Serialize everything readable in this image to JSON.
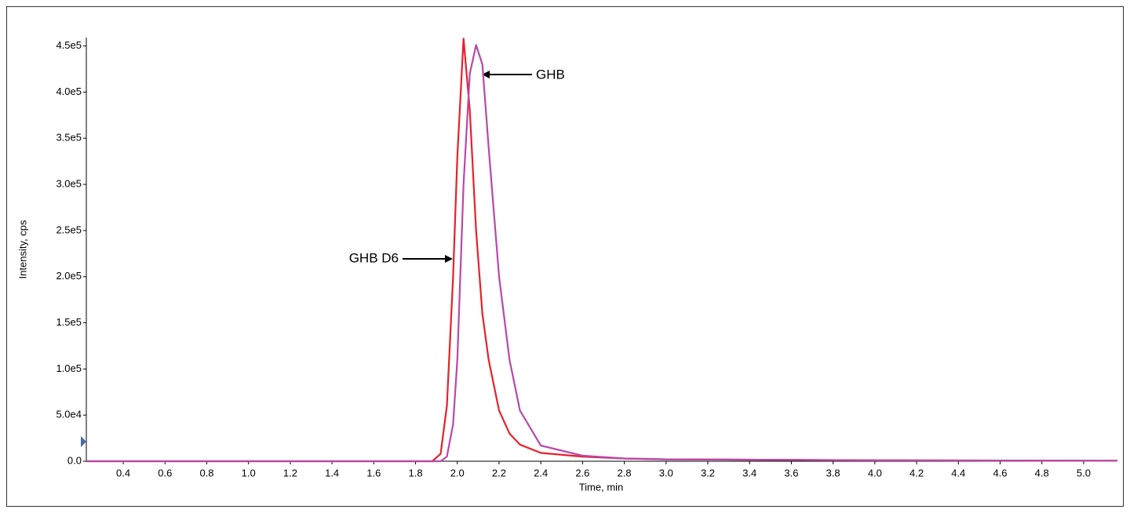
{
  "chart_data": {
    "type": "line",
    "x_label": "Time, min",
    "y_label": "Intensity, cps",
    "x": [
      0.223,
      1.0,
      1.8,
      1.88,
      1.92,
      1.95,
      1.98,
      2.0,
      2.03,
      2.06,
      2.09,
      2.12,
      2.15,
      2.2,
      2.25,
      2.3,
      2.4,
      2.6,
      2.8,
      3.0,
      4.0,
      5.162
    ],
    "series": [
      {
        "name": "GHB D6",
        "color": "#e8202a",
        "values": [
          0,
          0,
          0,
          0,
          8000,
          60000,
          200000,
          330000,
          458000,
          380000,
          250000,
          160000,
          110000,
          55000,
          30000,
          18000,
          9000,
          5000,
          3000,
          2000,
          1000,
          500
        ]
      },
      {
        "name": "GHB",
        "color": "#b848a8",
        "values": [
          0,
          0,
          0,
          0,
          0,
          5000,
          40000,
          110000,
          300000,
          420000,
          451000,
          430000,
          340000,
          200000,
          110000,
          55000,
          17000,
          6000,
          3000,
          2000,
          1000,
          500
        ]
      }
    ],
    "annotations": [
      "GHB",
      "GHB D6"
    ],
    "xlim": [
      0.223,
      5.162
    ],
    "xticks": [
      0.4,
      0.6,
      0.8,
      {
        "value": 1.0,
        "label": "1.0"
      },
      1.2,
      1.4,
      1.6,
      1.8,
      {
        "value": 2.0,
        "label": "2.0"
      },
      2.2,
      2.4,
      2.6,
      2.8,
      {
        "value": 3.0,
        "label": "3.0"
      },
      3.2,
      3.4,
      3.6,
      3.8,
      {
        "value": 4.0,
        "label": "4.0"
      },
      4.2,
      4.4,
      4.6,
      4.8,
      {
        "value": 5.0,
        "label": "5.0"
      }
    ],
    "ylim": [
      0,
      459000
    ],
    "yticks": [
      {
        "value": 0,
        "label": "0.0"
      },
      {
        "value": 50000,
        "label": "5.0e4"
      },
      {
        "value": 100000,
        "label": "1.0e5"
      },
      {
        "value": 150000,
        "label": "1.5e5"
      },
      {
        "value": 200000,
        "label": "2.0e5"
      },
      {
        "value": 250000,
        "label": "2.5e5"
      },
      {
        "value": 300000,
        "label": "3.0e5"
      },
      {
        "value": 350000,
        "label": "3.5e5"
      },
      {
        "value": 400000,
        "label": "4.0e5"
      },
      {
        "value": 450000,
        "label": "4.5e5"
      }
    ],
    "grid": false
  }
}
